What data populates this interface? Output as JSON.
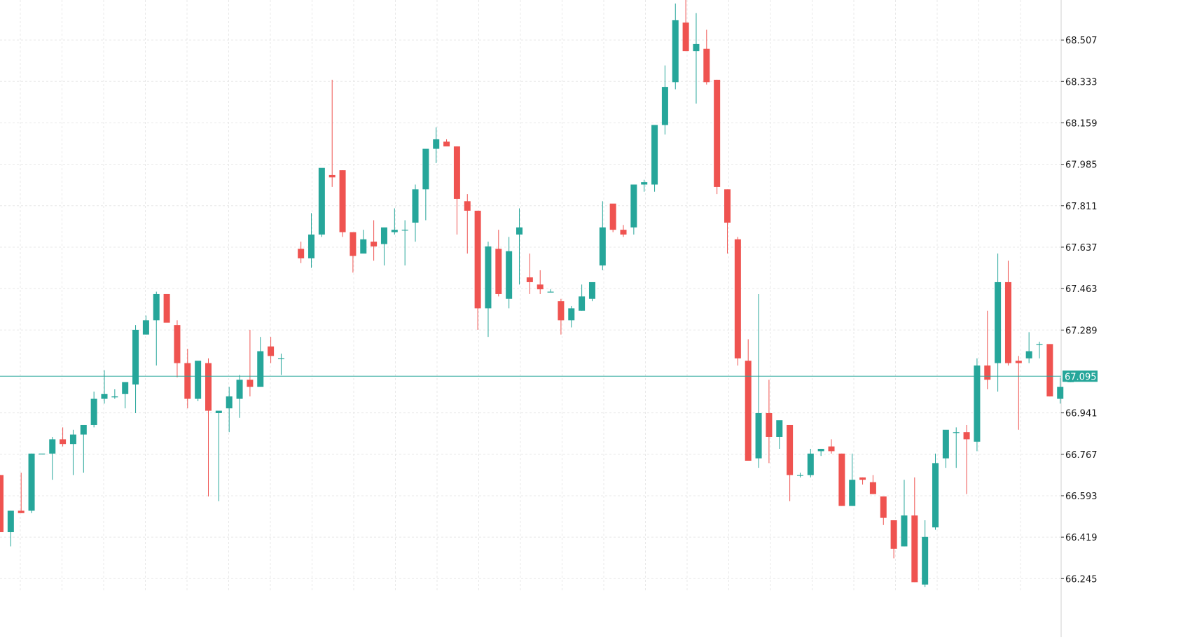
{
  "colors": {
    "up": "#26a69a",
    "down": "#ef5350",
    "grid": "#e8e8e8",
    "axis_line": "#cfcfcf",
    "current_price_line": "#26a69a"
  },
  "axis": {
    "ticks": [
      "68.507",
      "68.333",
      "68.159",
      "67.985",
      "67.811",
      "67.637",
      "67.463",
      "67.289",
      "66.941",
      "66.767",
      "66.593",
      "66.419",
      "66.245"
    ]
  },
  "current_price": {
    "value": 67.095,
    "label": "67.095"
  },
  "chart_data": {
    "type": "candlestick",
    "ylim": [
      66.19,
      68.675
    ],
    "grid": true,
    "candles": [
      {
        "o": 66.68,
        "h": 66.68,
        "l": 66.44,
        "c": 66.44
      },
      {
        "o": 66.44,
        "h": 66.53,
        "l": 66.38,
        "c": 66.53
      },
      {
        "o": 66.53,
        "h": 66.69,
        "l": 66.52,
        "c": 66.52
      },
      {
        "o": 66.53,
        "h": 66.77,
        "l": 66.52,
        "c": 66.77
      },
      {
        "o": 66.77,
        "h": 66.77,
        "l": 66.77,
        "c": 66.77
      },
      {
        "o": 66.77,
        "h": 66.84,
        "l": 66.66,
        "c": 66.83
      },
      {
        "o": 66.83,
        "h": 66.88,
        "l": 66.8,
        "c": 66.81
      },
      {
        "o": 66.81,
        "h": 66.87,
        "l": 66.68,
        "c": 66.85
      },
      {
        "o": 66.85,
        "h": 66.88,
        "l": 66.69,
        "c": 66.89
      },
      {
        "o": 66.89,
        "h": 67.03,
        "l": 66.88,
        "c": 67.0
      },
      {
        "o": 67.0,
        "h": 67.12,
        "l": 66.98,
        "c": 67.02
      },
      {
        "o": 67.01,
        "h": 67.04,
        "l": 67.0,
        "c": 67.01
      },
      {
        "o": 67.02,
        "h": 67.06,
        "l": 66.96,
        "c": 67.07
      },
      {
        "o": 67.06,
        "h": 67.31,
        "l": 66.94,
        "c": 67.29
      },
      {
        "o": 67.27,
        "h": 67.35,
        "l": 67.27,
        "c": 67.33
      },
      {
        "o": 67.33,
        "h": 67.45,
        "l": 67.14,
        "c": 67.44
      },
      {
        "o": 67.44,
        "h": 67.44,
        "l": 67.33,
        "c": 67.32
      },
      {
        "o": 67.31,
        "h": 67.33,
        "l": 67.09,
        "c": 67.15
      },
      {
        "o": 67.15,
        "h": 67.21,
        "l": 66.96,
        "c": 67.0
      },
      {
        "o": 67.0,
        "h": 67.15,
        "l": 66.99,
        "c": 67.16
      },
      {
        "o": 67.15,
        "h": 67.17,
        "l": 66.59,
        "c": 66.95
      },
      {
        "o": 66.94,
        "h": 66.94,
        "l": 66.57,
        "c": 66.95
      },
      {
        "o": 66.96,
        "h": 67.05,
        "l": 66.86,
        "c": 67.01
      },
      {
        "o": 67.0,
        "h": 67.1,
        "l": 66.92,
        "c": 67.08
      },
      {
        "o": 67.08,
        "h": 67.29,
        "l": 67.01,
        "c": 67.05
      },
      {
        "o": 67.05,
        "h": 67.26,
        "l": 67.05,
        "c": 67.2
      },
      {
        "o": 67.22,
        "h": 67.26,
        "l": 67.15,
        "c": 67.18
      },
      {
        "o": 67.17,
        "h": 67.19,
        "l": 67.1,
        "c": 67.17
      },
      {},
      {},
      {},
      {},
      {},
      {},
      {},
      {},
      {},
      {},
      {},
      {},
      {},
      {},
      {},
      {},
      {},
      {},
      {},
      {},
      {},
      {},
      {},
      {},
      {},
      {},
      {},
      {},
      {},
      {},
      {},
      {},
      {},
      {},
      {},
      {},
      {},
      {},
      {},
      {},
      {},
      {},
      {},
      {},
      {},
      {},
      {},
      {},
      {},
      {},
      {},
      {},
      {},
      {},
      {},
      {},
      {},
      {},
      {},
      {},
      {},
      {},
      {},
      {},
      {},
      {},
      {},
      {},
      {},
      {},
      {},
      {},
      {},
      {},
      {},
      {},
      {},
      {},
      {},
      {},
      {},
      {},
      {},
      {},
      {},
      {},
      {},
      {},
      {},
      {},
      {},
      {}
    ]
  }
}
